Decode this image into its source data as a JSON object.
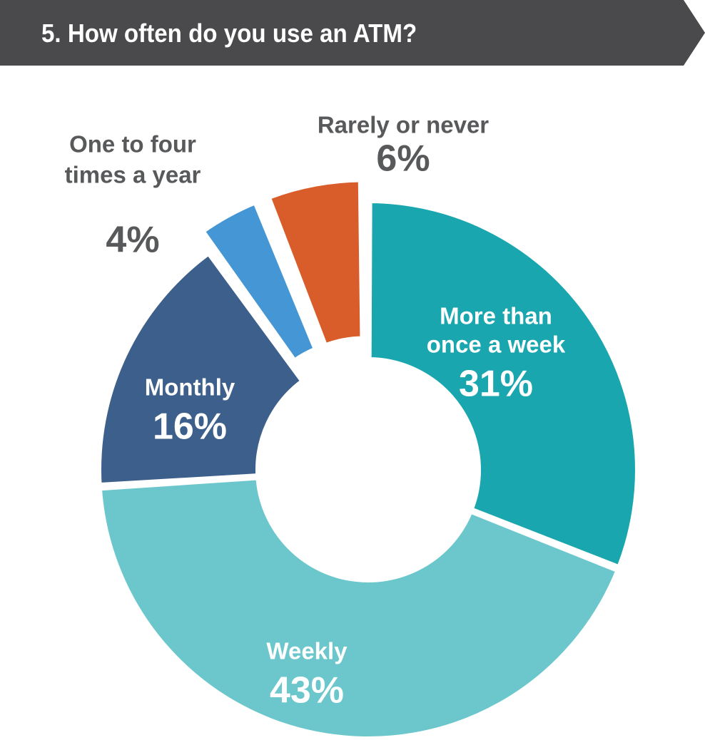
{
  "title": "5. How often do you use an ATM?",
  "colors": {
    "banner": "#4a4a4c",
    "outside_label": "#58595b",
    "inside_label": "#ffffff"
  },
  "chart_data": {
    "type": "pie",
    "style": "donut",
    "title": "5. How often do you use an ATM?",
    "slices": [
      {
        "label": "More than once a week",
        "label_lines": [
          "More than",
          "once a week"
        ],
        "value": 31,
        "display": "31%",
        "color": "#1aa6ae",
        "exploded": false,
        "label_position": "inside"
      },
      {
        "label": "Weekly",
        "label_lines": [
          "Weekly"
        ],
        "value": 43,
        "display": "43%",
        "color": "#6bc7cb",
        "exploded": false,
        "label_position": "inside"
      },
      {
        "label": "Monthly",
        "label_lines": [
          "Monthly"
        ],
        "value": 16,
        "display": "16%",
        "color": "#3d5f8b",
        "exploded": false,
        "label_position": "inside"
      },
      {
        "label": "One to four times a year",
        "label_lines": [
          "One to four",
          "times a year"
        ],
        "value": 4,
        "display": "4%",
        "color": "#4596d4",
        "exploded": true,
        "label_position": "outside"
      },
      {
        "label": "Rarely or never",
        "label_lines": [
          "Rarely or never"
        ],
        "value": 6,
        "display": "6%",
        "color": "#d95d2a",
        "exploded": true,
        "label_position": "outside"
      }
    ]
  }
}
